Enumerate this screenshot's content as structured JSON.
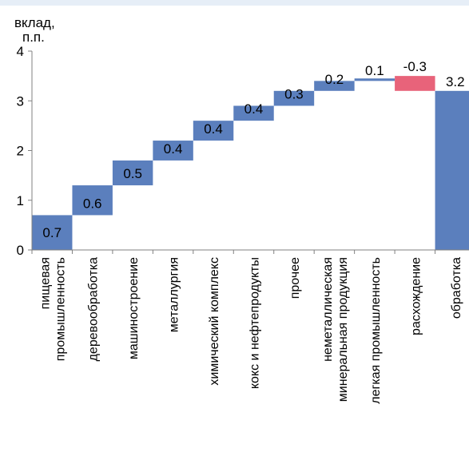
{
  "chart_data": {
    "type": "bar",
    "subtype": "waterfall",
    "ylabel": [
      "вклад,",
      "п.п."
    ],
    "ylim": [
      0,
      4
    ],
    "yticks": [
      0,
      1,
      2,
      3,
      4
    ],
    "grid": false,
    "categories": [
      [
        "пищевая",
        "промышленность"
      ],
      [
        "деревообработка"
      ],
      [
        "машиностроение"
      ],
      [
        "металлургия"
      ],
      [
        "химический комплекс"
      ],
      [
        "кокс и нефтепродукты"
      ],
      [
        "прочее"
      ],
      [
        "неметаллическая",
        "минеральная продукция"
      ],
      [
        "легкая промышленность"
      ],
      [
        "расхождение"
      ],
      [
        "обработка"
      ]
    ],
    "values": [
      0.7,
      0.6,
      0.5,
      0.4,
      0.4,
      0.4,
      0.3,
      0.2,
      0.1,
      -0.3,
      3.2
    ],
    "bar_base": [
      0.0,
      0.7,
      1.3,
      1.8,
      2.2,
      2.6,
      2.9,
      3.2,
      3.4,
      3.5,
      0.0
    ],
    "bar_top": [
      0.7,
      1.3,
      1.8,
      2.2,
      2.6,
      2.9,
      3.2,
      3.4,
      3.45,
      3.2,
      3.2
    ],
    "value_labels": [
      "0.7",
      "0.6",
      "0.5",
      "0.4",
      "0.4",
      "0.4",
      "0.3",
      "0.2",
      "0.1",
      "-0.3",
      "3.2"
    ],
    "colors": {
      "positive": "#5b7fbd",
      "negative": "#e8637a",
      "total": "#5b7fbd"
    }
  }
}
